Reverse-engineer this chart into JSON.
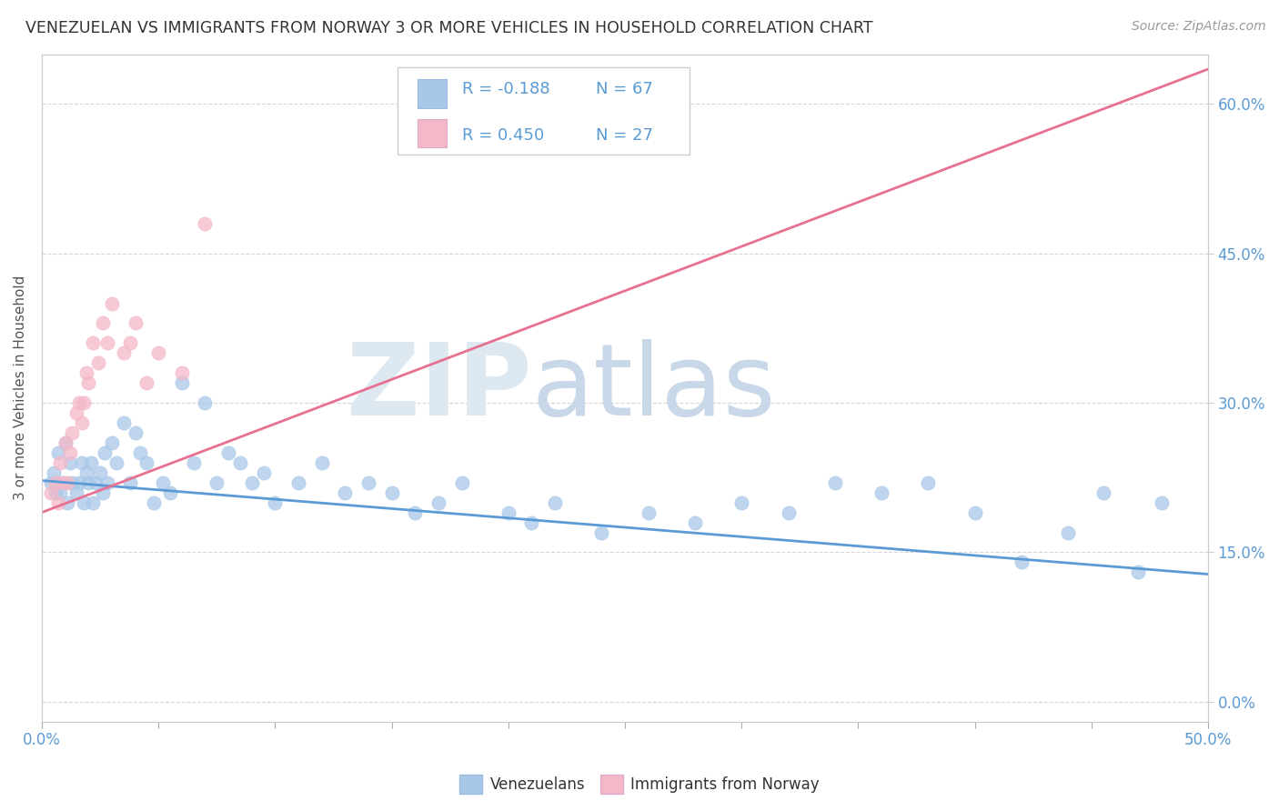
{
  "title": "VENEZUELAN VS IMMIGRANTS FROM NORWAY 3 OR MORE VEHICLES IN HOUSEHOLD CORRELATION CHART",
  "source": "Source: ZipAtlas.com",
  "ylabel": "3 or more Vehicles in Household",
  "yticks": [
    0.0,
    0.15,
    0.3,
    0.45,
    0.6
  ],
  "ytick_labels": [
    "0.0%",
    "15.0%",
    "30.0%",
    "45.0%",
    "60.0%"
  ],
  "xmin": 0.0,
  "xmax": 0.5,
  "ymin": -0.02,
  "ymax": 0.65,
  "color_venezuelan": "#a8c8e8",
  "color_norway": "#f4b8c8",
  "color_line_venezuelan": "#5b9bd5",
  "color_line_norway": "#e87090",
  "blue_line_x0": 0.0,
  "blue_line_y0": 0.222,
  "blue_line_x1": 0.5,
  "blue_line_y1": 0.128,
  "pink_line_x0": 0.0,
  "pink_line_y0": 0.19,
  "pink_line_x1": 0.5,
  "pink_line_y1": 0.635,
  "blue_scatter_x": [
    0.004,
    0.005,
    0.006,
    0.007,
    0.008,
    0.009,
    0.01,
    0.011,
    0.012,
    0.013,
    0.015,
    0.016,
    0.017,
    0.018,
    0.019,
    0.02,
    0.021,
    0.022,
    0.023,
    0.025,
    0.026,
    0.027,
    0.028,
    0.03,
    0.032,
    0.035,
    0.038,
    0.04,
    0.042,
    0.045,
    0.048,
    0.052,
    0.055,
    0.06,
    0.065,
    0.07,
    0.075,
    0.08,
    0.085,
    0.09,
    0.095,
    0.1,
    0.11,
    0.12,
    0.13,
    0.14,
    0.15,
    0.16,
    0.17,
    0.18,
    0.2,
    0.21,
    0.22,
    0.24,
    0.26,
    0.28,
    0.3,
    0.32,
    0.34,
    0.36,
    0.38,
    0.4,
    0.42,
    0.44,
    0.455,
    0.47,
    0.48
  ],
  "blue_scatter_y": [
    0.22,
    0.23,
    0.21,
    0.25,
    0.21,
    0.22,
    0.26,
    0.2,
    0.24,
    0.22,
    0.21,
    0.22,
    0.24,
    0.2,
    0.23,
    0.22,
    0.24,
    0.2,
    0.22,
    0.23,
    0.21,
    0.25,
    0.22,
    0.26,
    0.24,
    0.28,
    0.22,
    0.27,
    0.25,
    0.24,
    0.2,
    0.22,
    0.21,
    0.32,
    0.24,
    0.3,
    0.22,
    0.25,
    0.24,
    0.22,
    0.23,
    0.2,
    0.22,
    0.24,
    0.21,
    0.22,
    0.21,
    0.19,
    0.2,
    0.22,
    0.19,
    0.18,
    0.2,
    0.17,
    0.19,
    0.18,
    0.2,
    0.19,
    0.22,
    0.21,
    0.22,
    0.19,
    0.14,
    0.17,
    0.21,
    0.13,
    0.2
  ],
  "pink_scatter_x": [
    0.004,
    0.006,
    0.007,
    0.008,
    0.009,
    0.01,
    0.011,
    0.012,
    0.013,
    0.015,
    0.016,
    0.017,
    0.018,
    0.019,
    0.02,
    0.022,
    0.024,
    0.026,
    0.028,
    0.03,
    0.035,
    0.038,
    0.04,
    0.045,
    0.05,
    0.06,
    0.07
  ],
  "pink_scatter_y": [
    0.21,
    0.22,
    0.2,
    0.24,
    0.22,
    0.26,
    0.22,
    0.25,
    0.27,
    0.29,
    0.3,
    0.28,
    0.3,
    0.33,
    0.32,
    0.36,
    0.34,
    0.38,
    0.36,
    0.4,
    0.35,
    0.36,
    0.38,
    0.32,
    0.35,
    0.33,
    0.48
  ]
}
